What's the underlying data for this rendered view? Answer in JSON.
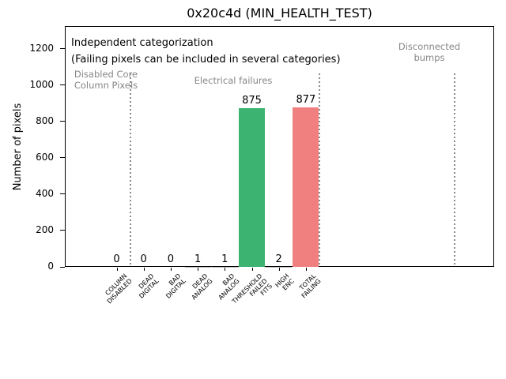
{
  "chart_data": {
    "type": "bar",
    "title": "0x20c4d (MIN_HEALTH_TEST)",
    "ylabel": "Number of pixels",
    "xlabel": "",
    "categories": [
      "COLUMN\nDISABLED",
      "DEAD\nDIGITAL",
      "BAD\nDIGITAL",
      "DEAD\nANALOG",
      "BAD\nANALOG",
      "THRESHOLD\nFAILED\nFITS",
      "HIGH\nENC",
      "TOTAL\nFAILING"
    ],
    "values": [
      0,
      0,
      0,
      1,
      1,
      875,
      2,
      877
    ],
    "bar_colors": [
      "#bbbbbb",
      "#bbbbbb",
      "#bbbbbb",
      "#bbbbbb",
      "#bbbbbb",
      "#3cb371",
      "#bbbbbb",
      "#f08080"
    ],
    "value_labels": [
      "0",
      "0",
      "0",
      "1",
      "1",
      "875",
      "2",
      "877"
    ],
    "yticks": [
      0,
      200,
      400,
      600,
      800,
      1000,
      1200
    ],
    "ylim": [
      0,
      1325
    ],
    "grid": false,
    "legend": null,
    "annotations": {
      "note_line1": "Independent categorization",
      "note_line2": "(Failing pixels can be included in several categories)",
      "sections": [
        {
          "label": "Disabled Core\nColumn Pixels"
        },
        {
          "label": "Electrical failures"
        },
        {
          "label": "Disconnected\nbumps"
        }
      ],
      "divider_positions_category_units": [
        0.5,
        7.5,
        12.5
      ]
    },
    "colors": {
      "green_bar": "#3cb371",
      "red_bar": "#f08080",
      "gray_text": "#868686",
      "divider_gray": "#8a8a8a"
    }
  }
}
